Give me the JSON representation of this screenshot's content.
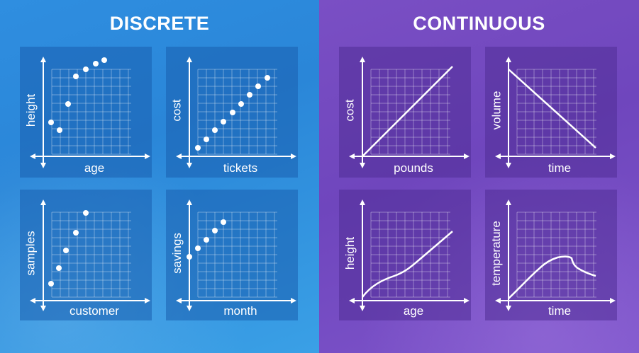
{
  "discrete": {
    "title": "DISCRETE",
    "panels": [
      {
        "id": "height-age",
        "xlabel": "age",
        "ylabel": "height"
      },
      {
        "id": "cost-tickets",
        "xlabel": "tickets",
        "ylabel": "cost"
      },
      {
        "id": "samples-customer",
        "xlabel": "customer",
        "ylabel": "samples"
      },
      {
        "id": "savings-month",
        "xlabel": "month",
        "ylabel": "savings"
      }
    ]
  },
  "continuous": {
    "title": "CONTINUOUS",
    "panels": [
      {
        "id": "cost-pounds",
        "xlabel": "pounds",
        "ylabel": "cost"
      },
      {
        "id": "volume-time",
        "xlabel": "time",
        "ylabel": "volume"
      },
      {
        "id": "height-age-continuous",
        "xlabel": "age",
        "ylabel": "height"
      },
      {
        "id": "temperature-time",
        "xlabel": "time",
        "ylabel": "temperature"
      }
    ]
  },
  "colors": {
    "discrete_background": "#2f8ee0",
    "continuous_background": "#7a4fc4",
    "foreground": "#ffffff"
  }
}
